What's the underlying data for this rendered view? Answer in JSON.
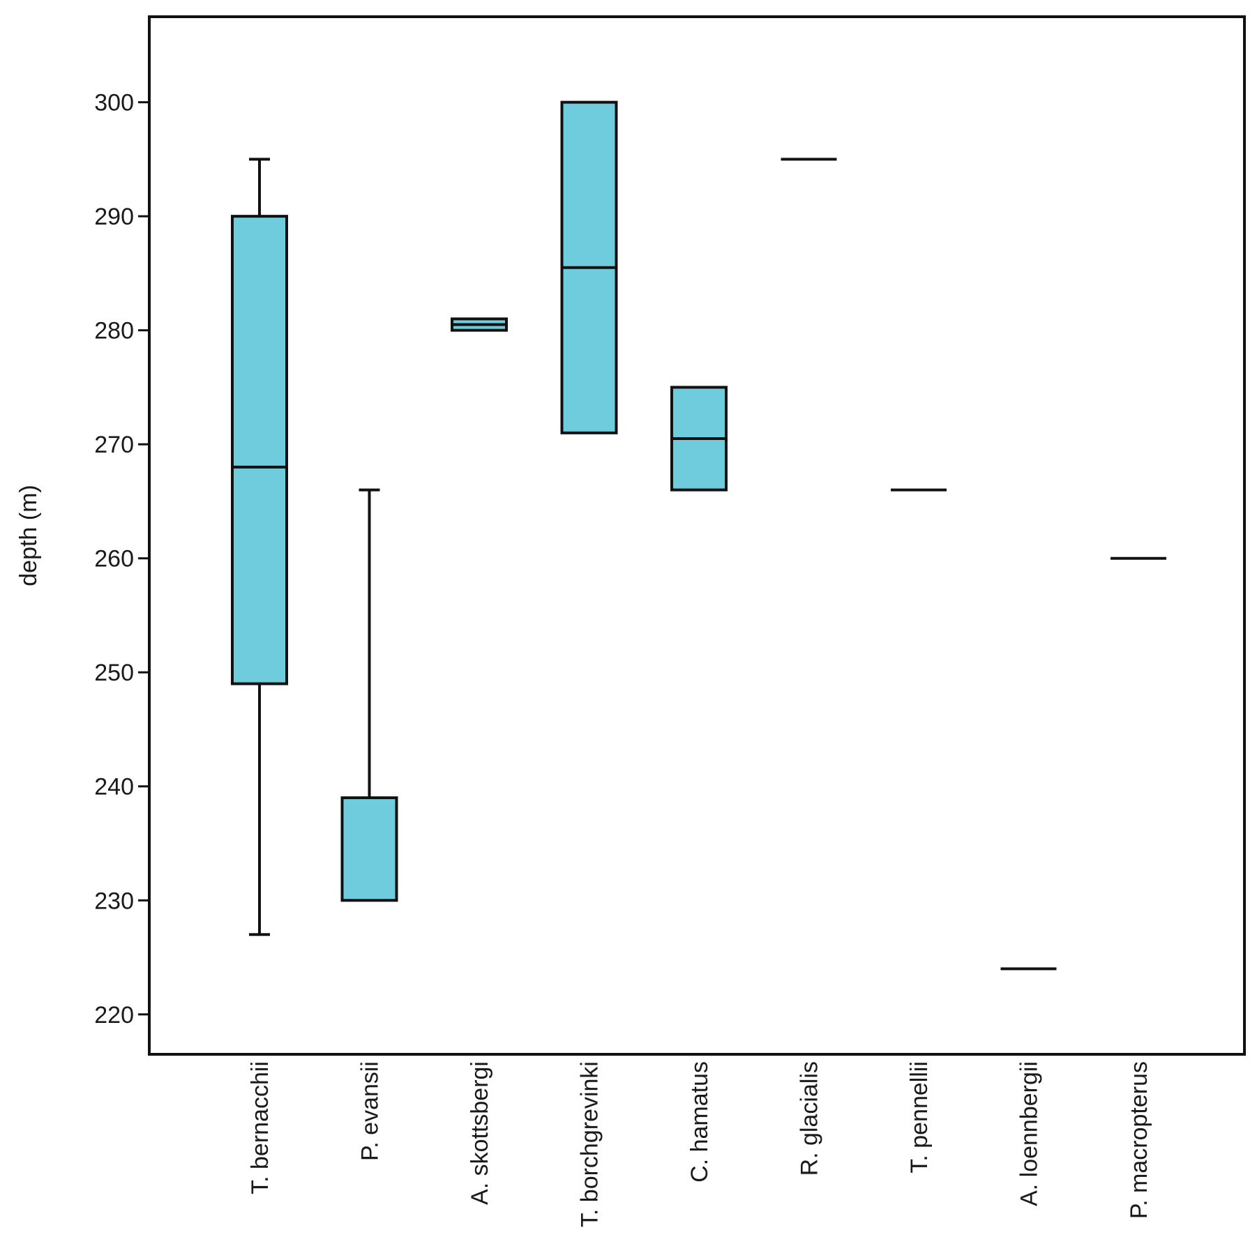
{
  "chart_data": {
    "type": "boxplot",
    "ylabel": "depth (m)",
    "xlabel": "",
    "ylim": [
      216.5,
      307.5
    ],
    "yticks": [
      220,
      230,
      240,
      250,
      260,
      270,
      280,
      290,
      300
    ],
    "grid": false,
    "box_color": "#6ECCDC",
    "line_color": "#111111",
    "categories": [
      "T. bernacchii",
      "P. evansii",
      "A. skottsbergi",
      "T. borchgrevinki",
      "C. hamatus",
      "R. glacialis",
      "T. pennellii",
      "A. loennbergii",
      "P. macropterus"
    ],
    "boxes": [
      {
        "whisker_low": 227,
        "q1": 249,
        "median": 268,
        "q3": 290,
        "whisker_high": 295
      },
      {
        "whisker_low": 230,
        "q1": 230,
        "median": 239,
        "q3": 239,
        "whisker_high": 266
      },
      {
        "whisker_low": 280,
        "q1": 280,
        "median": 280.5,
        "q3": 281,
        "whisker_high": 281
      },
      {
        "whisker_low": 271,
        "q1": 271,
        "median": 285.5,
        "q3": 300,
        "whisker_high": 300
      },
      {
        "whisker_low": 266,
        "q1": 266,
        "median": 270.5,
        "q3": 275,
        "whisker_high": 275
      },
      {
        "whisker_low": 295,
        "q1": 295,
        "median": 295,
        "q3": 295,
        "whisker_high": 295
      },
      {
        "whisker_low": 266,
        "q1": 266,
        "median": 266,
        "q3": 266,
        "whisker_high": 266
      },
      {
        "whisker_low": 224,
        "q1": 224,
        "median": 224,
        "q3": 224,
        "whisker_high": 224
      },
      {
        "whisker_low": 260,
        "q1": 260,
        "median": 260,
        "q3": 260,
        "whisker_high": 260
      }
    ]
  }
}
